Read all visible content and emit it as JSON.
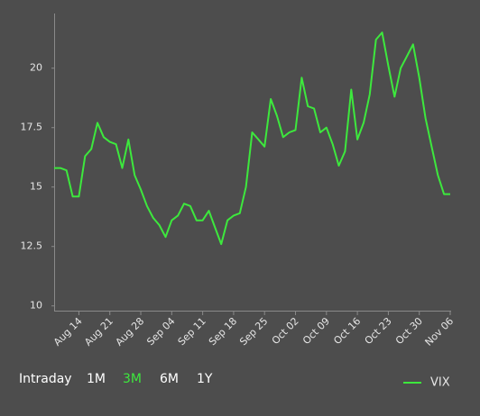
{
  "chart_data": {
    "type": "line",
    "categories": [
      null,
      null,
      null,
      null,
      "Aug 14",
      null,
      null,
      null,
      null,
      "Aug 21",
      null,
      null,
      null,
      null,
      "Aug 28",
      null,
      null,
      null,
      null,
      "Sep 04",
      null,
      null,
      null,
      null,
      "Sep 11",
      null,
      null,
      null,
      null,
      "Sep 18",
      null,
      null,
      null,
      null,
      "Sep 25",
      null,
      null,
      null,
      null,
      "Oct 02",
      null,
      null,
      null,
      null,
      "Oct 09",
      null,
      null,
      null,
      null,
      "Oct 16",
      null,
      null,
      null,
      null,
      "Oct 23",
      null,
      null,
      null,
      null,
      "Oct 30",
      null,
      null,
      null,
      null,
      "Nov 06"
    ],
    "series": [
      {
        "name": "VIX",
        "color": "#3de83d",
        "values": [
          15.8,
          15.8,
          15.7,
          14.6,
          14.6,
          16.3,
          16.6,
          17.7,
          17.1,
          16.9,
          16.8,
          15.8,
          17.0,
          15.5,
          14.9,
          14.2,
          13.7,
          13.4,
          12.9,
          13.6,
          13.8,
          14.3,
          14.2,
          13.6,
          13.6,
          14.0,
          13.3,
          12.6,
          13.6,
          13.8,
          13.9,
          15.0,
          17.3,
          17.0,
          16.7,
          18.7,
          18.0,
          17.1,
          17.3,
          17.4,
          19.6,
          18.4,
          18.3,
          17.3,
          17.5,
          16.8,
          15.9,
          16.5,
          19.1,
          17.0,
          17.7,
          18.9,
          21.2,
          21.5,
          20.1,
          18.8,
          20.0,
          20.5,
          21.0,
          19.6,
          17.9,
          16.7,
          15.5,
          14.7,
          14.7
        ]
      }
    ],
    "ylim": [
      9.8,
      22.3
    ],
    "yticks": [
      10,
      12.5,
      15,
      17.5,
      20
    ],
    "grid": false
  },
  "range_selector": {
    "options": [
      "Intraday",
      "1M",
      "3M",
      "6M",
      "1Y"
    ],
    "selected": 2
  }
}
